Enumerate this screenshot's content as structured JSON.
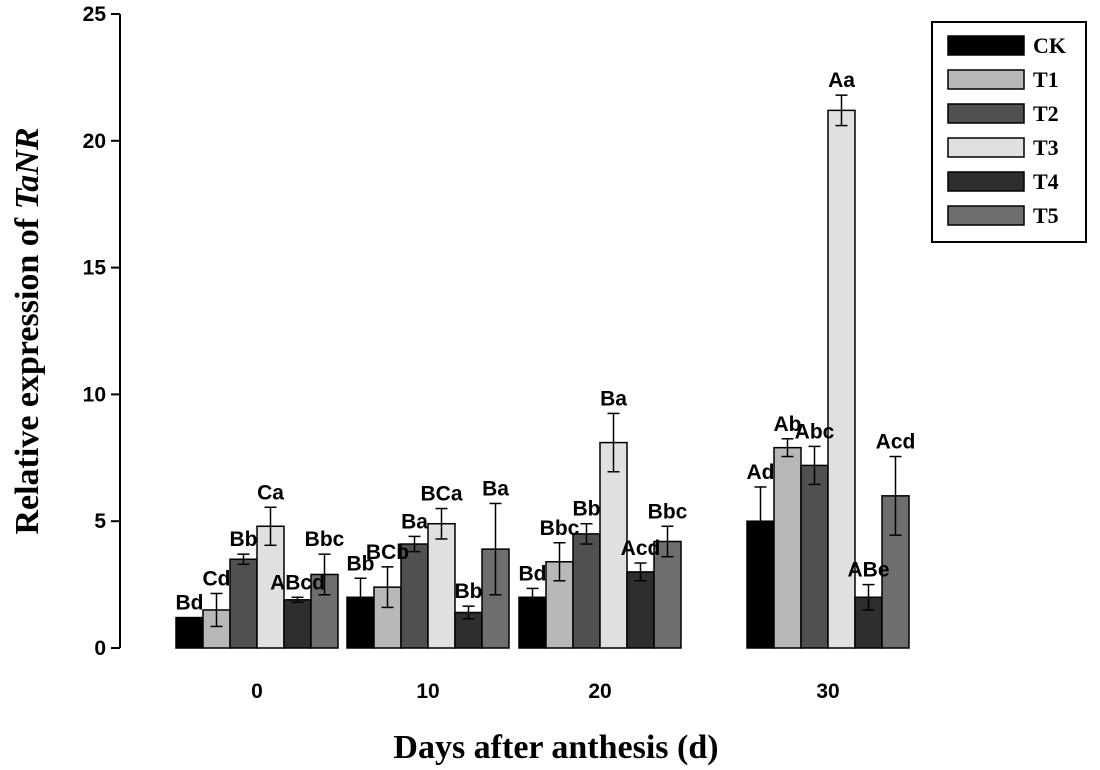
{
  "chart_data": {
    "type": "bar",
    "title": "",
    "xlabel": "Days after anthesis (d)",
    "ylabel_prefix": "Relative expression of ",
    "ylabel_gene": "TaNR",
    "ylim": [
      0,
      25
    ],
    "yticks": [
      "0",
      "5",
      "10",
      "15",
      "20",
      "25"
    ],
    "categories": [
      "0",
      "10",
      "20",
      "30"
    ],
    "legend_position": "top-right",
    "series": [
      {
        "name": "CK",
        "color": "#000000",
        "values": [
          1.2,
          2.0,
          2.0,
          5.0
        ],
        "errors": [
          0.0,
          0.75,
          0.35,
          1.35
        ],
        "labels": [
          "Bd",
          "Bb",
          "Bd",
          "Ad"
        ]
      },
      {
        "name": "T1",
        "color": "#b8b8b8",
        "values": [
          1.5,
          2.4,
          3.4,
          7.9
        ],
        "errors": [
          0.65,
          0.8,
          0.75,
          0.35
        ],
        "labels": [
          "Cd",
          "BCb",
          "Bbc",
          "Ab"
        ]
      },
      {
        "name": "T2",
        "color": "#505050",
        "values": [
          3.5,
          4.1,
          4.5,
          7.2
        ],
        "errors": [
          0.2,
          0.3,
          0.4,
          0.75
        ],
        "labels": [
          "Bb",
          "Ba",
          "Bb",
          "Abc"
        ]
      },
      {
        "name": "T3",
        "color": "#e0e0e0",
        "values": [
          4.8,
          4.9,
          8.1,
          21.2
        ],
        "errors": [
          0.75,
          0.6,
          1.15,
          0.6
        ],
        "labels": [
          "Ca",
          "BCa",
          "Ba",
          "Aa"
        ]
      },
      {
        "name": "T4",
        "color": "#2e2e2e",
        "values": [
          1.9,
          1.4,
          3.0,
          2.0
        ],
        "errors": [
          0.1,
          0.25,
          0.35,
          0.5
        ],
        "labels": [
          "ABcd",
          "Bb",
          "Acd",
          "ABe"
        ]
      },
      {
        "name": "T5",
        "color": "#6e6e6e",
        "values": [
          2.9,
          3.9,
          4.2,
          6.0
        ],
        "errors": [
          0.8,
          1.8,
          0.6,
          1.55
        ],
        "labels": [
          "Bbc",
          "Ba",
          "Bbc",
          "Acd"
        ]
      }
    ]
  }
}
